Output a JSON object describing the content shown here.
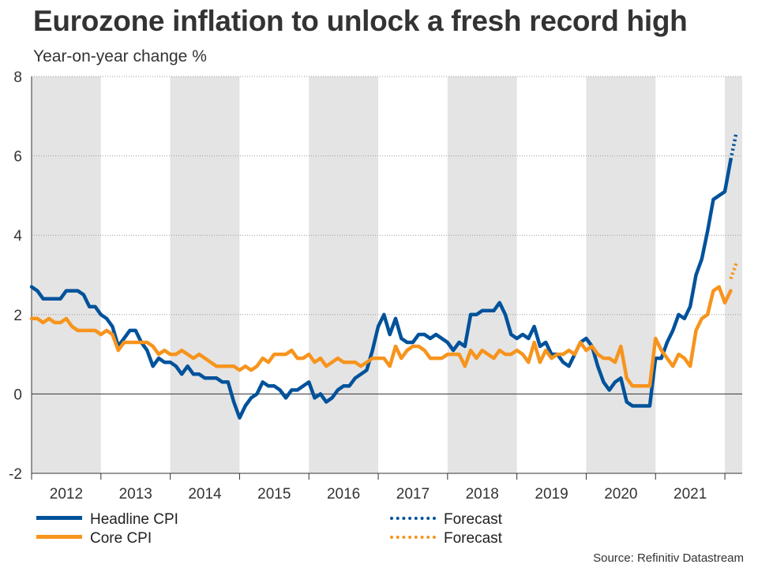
{
  "chart_data": {
    "type": "line",
    "title": "Eurozone inflation to unlock a fresh record high",
    "ylabel": "Year-on-year change %",
    "xlabel": "",
    "ylim": [
      -2,
      8
    ],
    "yticks": [
      -2,
      0,
      2,
      4,
      6,
      8
    ],
    "xlim": [
      2012.0,
      2022.25
    ],
    "year_labels": [
      "2012",
      "2013",
      "2014",
      "2015",
      "2016",
      "2017",
      "2018",
      "2019",
      "2020",
      "2021"
    ],
    "shaded_years": [
      "2012",
      "2014",
      "2016",
      "2018",
      "2020",
      "2022"
    ],
    "grid": "horizontal dotted",
    "series": [
      {
        "name": "Headline CPI",
        "color": "#00529b",
        "style": "solid",
        "x_start": 2012.0,
        "step": "monthly",
        "values": [
          2.7,
          2.6,
          2.4,
          2.4,
          2.4,
          2.4,
          2.6,
          2.6,
          2.6,
          2.5,
          2.2,
          2.2,
          2.0,
          1.9,
          1.7,
          1.2,
          1.4,
          1.6,
          1.6,
          1.3,
          1.1,
          0.7,
          0.9,
          0.8,
          0.8,
          0.7,
          0.5,
          0.7,
          0.5,
          0.5,
          0.4,
          0.4,
          0.4,
          0.3,
          0.3,
          -0.2,
          -0.6,
          -0.3,
          -0.1,
          0.0,
          0.3,
          0.2,
          0.2,
          0.1,
          -0.1,
          0.1,
          0.1,
          0.2,
          0.3,
          -0.1,
          0.0,
          -0.2,
          -0.1,
          0.1,
          0.2,
          0.2,
          0.4,
          0.5,
          0.6,
          1.1,
          1.7,
          2.0,
          1.5,
          1.9,
          1.4,
          1.3,
          1.3,
          1.5,
          1.5,
          1.4,
          1.5,
          1.4,
          1.3,
          1.1,
          1.3,
          1.2,
          2.0,
          2.0,
          2.1,
          2.1,
          2.1,
          2.3,
          2.0,
          1.5,
          1.4,
          1.5,
          1.4,
          1.7,
          1.2,
          1.3,
          1.0,
          1.0,
          0.8,
          0.7,
          1.0,
          1.3,
          1.4,
          1.2,
          0.7,
          0.3,
          0.1,
          0.3,
          0.4,
          -0.2,
          -0.3,
          -0.3,
          -0.3,
          -0.3,
          0.9,
          0.9,
          1.3,
          1.6,
          2.0,
          1.9,
          2.2,
          3.0,
          3.4,
          4.1,
          4.9,
          5.0,
          5.1,
          5.9
        ],
        "forecast": {
          "color": "#00529b",
          "style": "dotted",
          "values": [
            5.9,
            6.6
          ]
        }
      },
      {
        "name": "Core CPI",
        "color": "#f7941d",
        "style": "solid",
        "x_start": 2012.0,
        "step": "monthly",
        "values": [
          1.9,
          1.9,
          1.8,
          1.9,
          1.8,
          1.8,
          1.9,
          1.7,
          1.6,
          1.6,
          1.6,
          1.6,
          1.5,
          1.6,
          1.5,
          1.1,
          1.3,
          1.3,
          1.3,
          1.3,
          1.3,
          1.2,
          1.0,
          1.1,
          1.0,
          1.0,
          1.1,
          1.0,
          0.9,
          1.0,
          0.9,
          0.8,
          0.7,
          0.7,
          0.7,
          0.7,
          0.6,
          0.7,
          0.6,
          0.7,
          0.9,
          0.8,
          1.0,
          1.0,
          1.0,
          1.1,
          0.9,
          0.9,
          1.0,
          0.8,
          0.9,
          0.7,
          0.8,
          0.9,
          0.8,
          0.8,
          0.8,
          0.7,
          0.8,
          0.9,
          0.9,
          0.9,
          0.7,
          1.2,
          0.9,
          1.1,
          1.2,
          1.2,
          1.1,
          0.9,
          0.9,
          0.9,
          1.0,
          1.0,
          1.0,
          0.7,
          1.1,
          0.9,
          1.1,
          1.0,
          0.9,
          1.1,
          1.0,
          1.0,
          1.1,
          1.0,
          0.8,
          1.3,
          0.8,
          1.1,
          0.9,
          1.0,
          1.0,
          1.1,
          1.0,
          1.3,
          1.1,
          1.2,
          1.0,
          0.9,
          0.9,
          0.8,
          1.2,
          0.4,
          0.2,
          0.2,
          0.2,
          0.2,
          1.4,
          1.1,
          0.9,
          0.7,
          1.0,
          0.9,
          0.7,
          1.6,
          1.9,
          2.0,
          2.6,
          2.7,
          2.3,
          2.6
        ],
        "forecast": {
          "color": "#f7941d",
          "style": "dotted",
          "values": [
            2.9,
            3.3
          ]
        }
      }
    ],
    "source": "Source: Refinitiv Datastream"
  },
  "legend": {
    "headline": "Headline CPI",
    "core": "Core CPI",
    "headline_forecast": "Forecast",
    "core_forecast": "Forecast"
  }
}
